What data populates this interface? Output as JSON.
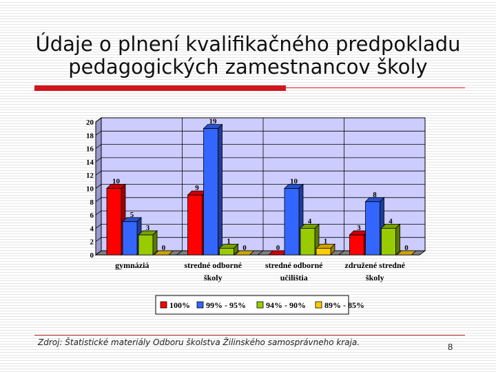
{
  "slide": {
    "title_line1": "Údaje o plnení kvalifikačného predpokladu",
    "title_line2": "pedagogických zamestnancov školy",
    "source": "Zdroj: Štatistické materiály Odboru školstva Žilinského samosprávneho kraja.",
    "page_number": "8"
  },
  "chart_data": {
    "type": "bar",
    "title": "",
    "xlabel": "",
    "ylabel": "",
    "ylim": [
      0,
      20
    ],
    "yticks": [
      0,
      2,
      4,
      6,
      8,
      10,
      12,
      14,
      16,
      18,
      20
    ],
    "grid": true,
    "legend_position": "bottom",
    "categories": [
      [
        "gymnáziá"
      ],
      [
        "stredné odborné",
        "školy"
      ],
      [
        "stredné odborné",
        "učilištia"
      ],
      [
        "združené stredné",
        "školy"
      ]
    ],
    "series": [
      {
        "name": "100%",
        "color": "#ff0000",
        "values": [
          10,
          9,
          0,
          3
        ]
      },
      {
        "name": "99% - 95%",
        "color": "#3366ff",
        "values": [
          5,
          19,
          10,
          8
        ]
      },
      {
        "name": "94% - 90%",
        "color": "#99cc00",
        "values": [
          3,
          1,
          4,
          4
        ]
      },
      {
        "name": "89% - 85%",
        "color": "#ffcc00",
        "values": [
          0,
          0,
          1,
          0
        ]
      }
    ],
    "colors": {
      "plot_background": "#ccccff",
      "grid": "#000000"
    }
  }
}
